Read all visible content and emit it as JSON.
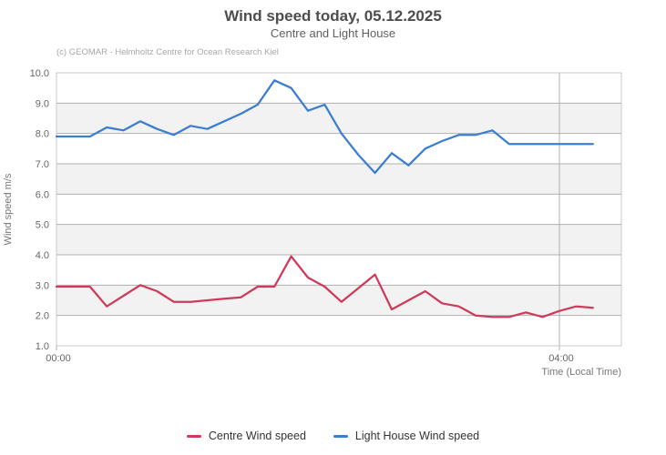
{
  "header": {
    "title": "Wind speed today, 05.12.2025",
    "subtitle": "Centre and Light House",
    "credit": "(c) GEOMAR - Helmholtz Centre for Ocean Research Kiel"
  },
  "axes": {
    "y_title": "Wind speed  m/s",
    "x_title": "Time (Local Time)"
  },
  "legend": {
    "items": [
      {
        "label": "Centre Wind speed",
        "color": "#cf3a5a"
      },
      {
        "label": "Light House Wind speed",
        "color": "#3b7ed0"
      }
    ]
  },
  "colors": {
    "band": "#f2f2f2",
    "gridline": "#b0b0b0",
    "border": "#c9c9c9",
    "tick_label": "#666666",
    "axis_title": "#777777"
  },
  "chart_data": {
    "type": "line",
    "title": "Wind speed today, 05.12.2025",
    "subtitle": "Centre and Light House",
    "xlabel": "Time (Local Time)",
    "ylabel": "Wind speed  m/s",
    "ylim": [
      1.0,
      10.0
    ],
    "y_tick_step": 1.0,
    "y_tick_labels": [
      "10.0",
      "9.0",
      "8.0",
      "7.0",
      "6.0",
      "5.0",
      "4.0",
      "3.0",
      "2.0",
      "1.0"
    ],
    "grid": true,
    "alternating_bands": true,
    "legend_position": "bottom",
    "x_ticks": [
      {
        "label": "00:00",
        "min": 0
      },
      {
        "label": "04:00",
        "min": 240
      }
    ],
    "x_min": [
      0,
      8,
      16,
      24,
      32,
      40,
      48,
      56,
      64,
      72,
      80,
      88,
      96,
      104,
      112,
      120,
      128,
      136,
      144,
      152,
      160,
      168,
      176,
      184,
      192,
      200,
      208,
      216,
      224,
      232,
      240,
      248,
      256
    ],
    "series": [
      {
        "name": "Centre Wind speed",
        "color": "#cf3a5a",
        "values": [
          2.95,
          2.95,
          2.95,
          2.3,
          2.65,
          3.0,
          2.8,
          2.45,
          2.45,
          2.5,
          2.55,
          2.6,
          2.95,
          2.95,
          3.95,
          3.25,
          2.95,
          2.45,
          2.9,
          3.35,
          2.2,
          2.5,
          2.8,
          2.4,
          2.3,
          2.0,
          1.95,
          1.95,
          2.1,
          1.95,
          2.15,
          2.3,
          2.25
        ]
      },
      {
        "name": "Light House Wind speed",
        "color": "#3b7ed0",
        "values": [
          7.9,
          7.9,
          7.9,
          8.2,
          8.1,
          8.4,
          8.15,
          7.95,
          8.25,
          8.15,
          8.4,
          8.65,
          8.95,
          9.75,
          9.5,
          8.75,
          8.95,
          8.0,
          7.3,
          6.7,
          7.35,
          6.95,
          7.5,
          7.75,
          7.95,
          7.95,
          8.1,
          7.65,
          7.65,
          7.65,
          7.65,
          7.65,
          7.65
        ]
      }
    ]
  }
}
